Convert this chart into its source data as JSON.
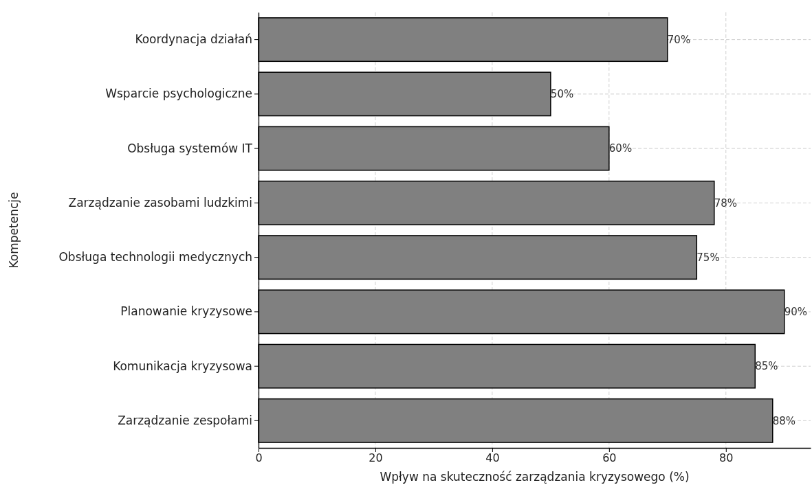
{
  "chart_data": {
    "type": "bar",
    "orientation": "horizontal",
    "xlabel": "Wpływ na skuteczność zarządzania kryzysowego (%)",
    "ylabel": "Kompetencje",
    "categories": [
      "Koordynacja działań",
      "Wsparcie psychologiczne",
      "Obsługa systemów IT",
      "Zarządzanie zasobami ludzkimi",
      "Obsługa technologii medycznych",
      "Planowanie kryzysowe",
      "Komunikacja kryzysowa",
      "Zarządzanie zespołami"
    ],
    "values": [
      70,
      50,
      60,
      78,
      75,
      90,
      85,
      88
    ],
    "value_labels": [
      "70%",
      "50%",
      "60%",
      "78%",
      "75%",
      "90%",
      "85%",
      "88%"
    ],
    "color": "#808080",
    "xlim": [
      0,
      94.5
    ],
    "xticks": [
      0,
      20,
      40,
      60,
      80
    ],
    "grid": true
  }
}
